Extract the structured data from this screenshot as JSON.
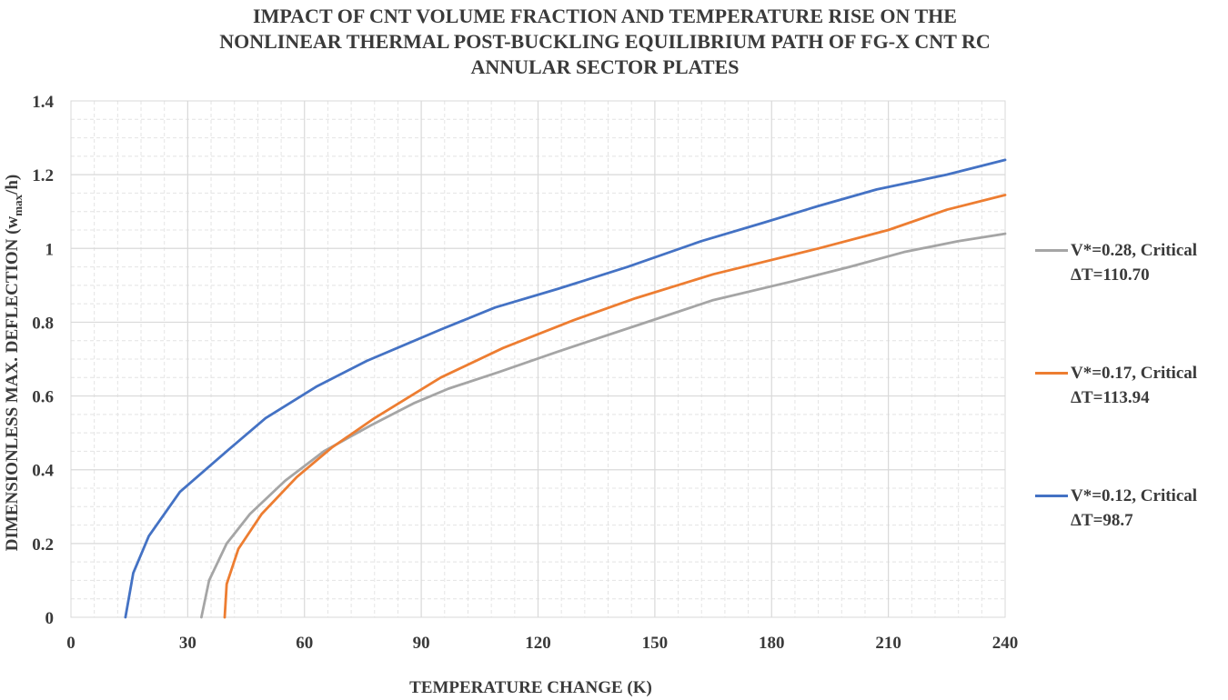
{
  "chart_data": {
    "type": "line",
    "title_lines": [
      "IMPACT OF CNT VOLUME FRACTION AND TEMPERATURE RISE ON THE",
      "NONLINEAR THERMAL POST-BUCKLING EQUILIBRIUM PATH OF FG-X CNT RC",
      "ANNULAR SECTOR PLATES"
    ],
    "xlabel": "TEMPERATURE CHANGE (K)",
    "ylabel": {
      "before": "DIMENSIONLESS MAX. DEFLECTION (w",
      "subscript": "max",
      "after": "/h)"
    },
    "xlim": [
      0,
      240
    ],
    "ylim": [
      0,
      1.4
    ],
    "x_ticks": [
      "0",
      "30",
      "60",
      "90",
      "120",
      "150",
      "180",
      "210",
      "240"
    ],
    "y_ticks": [
      "0",
      "0.2",
      "0.4",
      "0.6",
      "0.8",
      "1",
      "1.2",
      "1.4"
    ],
    "grid": true,
    "legend_position": "right",
    "series": [
      {
        "name_lines": [
          "V*=0.28, Critical",
          "ΔT=110.70"
        ],
        "color": "#a5a5a5",
        "x": [
          33.5,
          35.5,
          40,
          46,
          55,
          65,
          77,
          88,
          97,
          110,
          125,
          145,
          165,
          185,
          200,
          214,
          228,
          240
        ],
        "y": [
          0,
          0.1,
          0.2,
          0.28,
          0.37,
          0.45,
          0.52,
          0.58,
          0.62,
          0.665,
          0.72,
          0.79,
          0.86,
          0.91,
          0.95,
          0.99,
          1.02,
          1.04
        ]
      },
      {
        "name_lines": [
          "V*=0.17, Critical",
          "ΔT=113.94"
        ],
        "color": "#ed7d31",
        "x": [
          39.5,
          40,
          43,
          49,
          58,
          67,
          78,
          95,
          111,
          129,
          145,
          165,
          192,
          210,
          225,
          240
        ],
        "y": [
          0,
          0.09,
          0.185,
          0.28,
          0.38,
          0.46,
          0.54,
          0.65,
          0.73,
          0.805,
          0.865,
          0.93,
          1.0,
          1.05,
          1.105,
          1.145
        ]
      },
      {
        "name_lines": [
          "V*=0.12, Critical",
          "ΔT=98.7"
        ],
        "color": "#4472c4",
        "x": [
          14,
          16,
          20,
          28,
          40,
          50,
          63,
          76,
          95,
          109,
          125,
          143,
          162,
          178,
          192,
          207,
          225,
          240
        ],
        "y": [
          0,
          0.12,
          0.22,
          0.34,
          0.45,
          0.54,
          0.625,
          0.695,
          0.78,
          0.84,
          0.89,
          0.95,
          1.02,
          1.07,
          1.115,
          1.16,
          1.2,
          1.24
        ]
      }
    ]
  }
}
